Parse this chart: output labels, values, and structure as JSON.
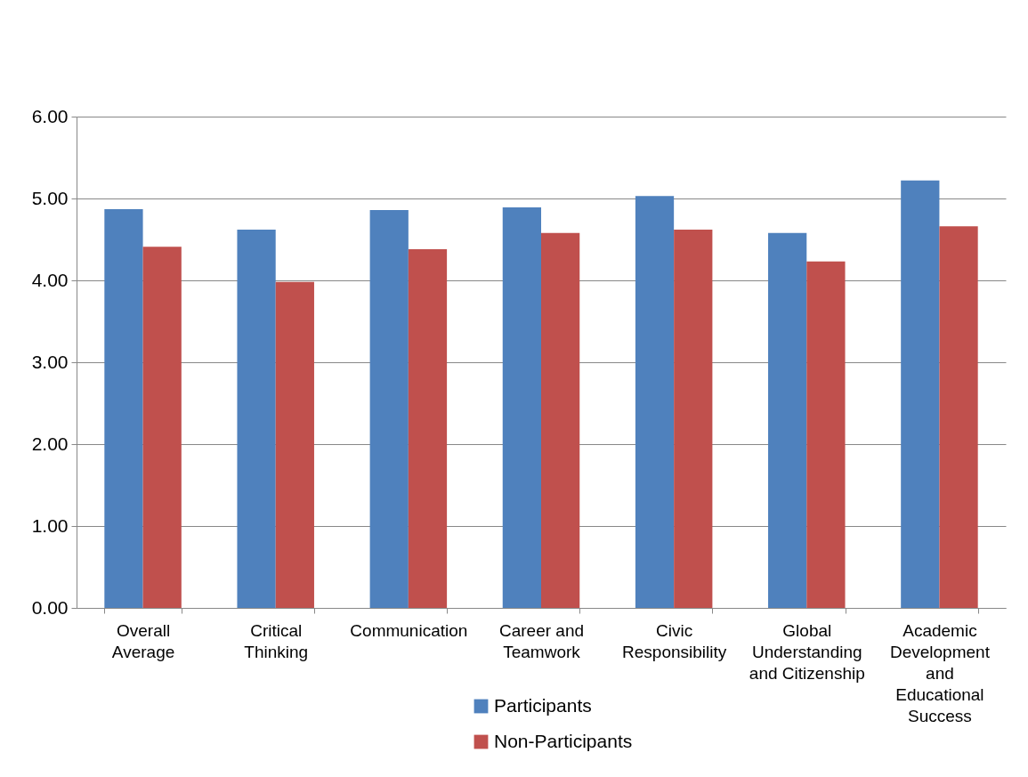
{
  "chart_data": {
    "type": "bar",
    "categories": [
      "Overall Average",
      "Critical Thinking",
      "Communication",
      "Career and Teamwork",
      "Civic Responsibility",
      "Global Understanding and Citizenship",
      "Academic Development and Educational Success"
    ],
    "series": [
      {
        "name": "Participants",
        "color": "#4f81bd",
        "values": [
          4.87,
          4.62,
          4.86,
          4.89,
          5.03,
          4.58,
          5.22
        ]
      },
      {
        "name": "Non-Participants",
        "color": "#c0504d",
        "values": [
          4.41,
          3.98,
          4.38,
          4.58,
          4.62,
          4.23,
          4.66
        ]
      }
    ],
    "ylim": [
      0,
      6
    ],
    "yticks": [
      {
        "value": 0,
        "label": "0.00"
      },
      {
        "value": 1,
        "label": "1.00"
      },
      {
        "value": 2,
        "label": "2.00"
      },
      {
        "value": 3,
        "label": "3.00"
      },
      {
        "value": 4,
        "label": "4.00"
      },
      {
        "value": 5,
        "label": "5.00"
      },
      {
        "value": 6,
        "label": "6.00"
      }
    ],
    "grid": "y",
    "legend": "bottom"
  }
}
